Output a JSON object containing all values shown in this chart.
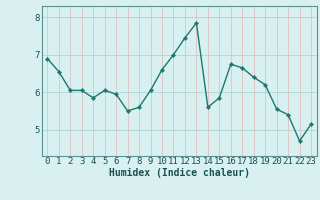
{
  "x": [
    0,
    1,
    2,
    3,
    4,
    5,
    6,
    7,
    8,
    9,
    10,
    11,
    12,
    13,
    14,
    15,
    16,
    17,
    18,
    19,
    20,
    21,
    22,
    23
  ],
  "y": [
    6.9,
    6.55,
    6.05,
    6.05,
    5.85,
    6.05,
    5.95,
    5.5,
    5.6,
    6.05,
    6.6,
    7.0,
    7.45,
    7.85,
    5.6,
    5.85,
    6.75,
    6.65,
    6.4,
    6.2,
    5.55,
    5.4,
    4.7,
    5.15
  ],
  "line_color": "#1a7a6e",
  "marker": "D",
  "marker_size": 2.2,
  "bg_color": "#d9f0f0",
  "grid_color_major": "#a8cece",
  "grid_color_minor_x": "#e0b8b8",
  "xlabel": "Humidex (Indice chaleur)",
  "xlabel_fontsize": 7,
  "yticks": [
    5,
    6,
    7,
    8
  ],
  "ylim": [
    4.3,
    8.3
  ],
  "xlim": [
    -0.5,
    23.5
  ],
  "tick_fontsize": 6.5,
  "line_width": 1.0
}
